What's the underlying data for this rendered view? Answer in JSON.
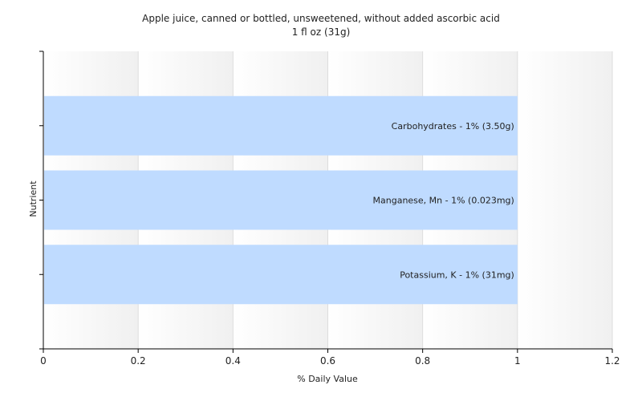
{
  "chart_data": {
    "type": "bar",
    "orientation": "horizontal",
    "title": "Apple juice, canned or bottled, unsweetened, without added ascorbic acid",
    "subtitle": "1 fl oz (31g)",
    "xlabel": "% Daily Value",
    "ylabel": "Nutrient",
    "xlim": [
      0,
      1.2
    ],
    "xticks": [
      "0",
      "0.2",
      "0.4",
      "0.6",
      "0.8",
      "1",
      "1.2"
    ],
    "grid": true,
    "categories": [
      "Carbohydrates",
      "Manganese, Mn",
      "Potassium, K"
    ],
    "values": [
      1,
      1,
      1
    ],
    "data_labels": [
      "Carbohydrates - 1% (3.50g)",
      "Manganese, Mn - 1% (0.023mg)",
      "Potassium, K - 1% (31mg)"
    ],
    "bar_color": "#bfdbff"
  }
}
